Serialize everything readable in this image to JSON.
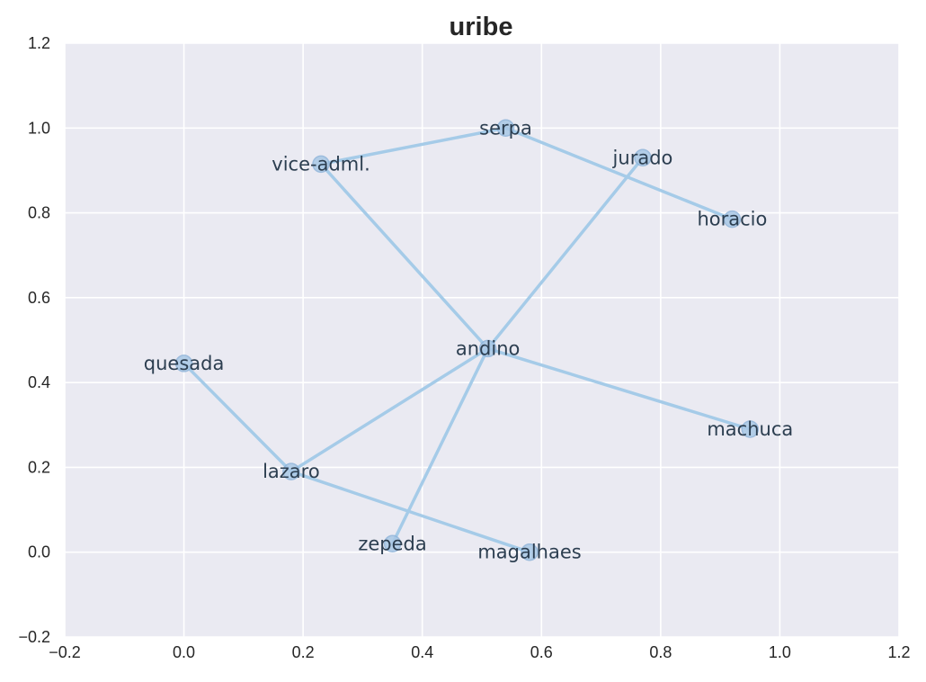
{
  "chart_data": {
    "type": "scatter",
    "subtype": "network-graph",
    "title": "uribe",
    "xlabel": "",
    "ylabel": "",
    "xlim": [
      -0.2,
      1.2
    ],
    "ylim": [
      -0.2,
      1.2
    ],
    "x_ticks": [
      "−0.2",
      "0.0",
      "0.2",
      "0.4",
      "0.6",
      "0.8",
      "1.0",
      "1.2"
    ],
    "y_ticks": [
      "−0.2",
      "0.0",
      "0.2",
      "0.4",
      "0.6",
      "0.8",
      "1.0",
      "1.2"
    ],
    "grid": true,
    "colors": {
      "background": "#eaeaf2",
      "edge": "#a5cbe8",
      "node": "#a9c8e6",
      "label": "#2c3e50"
    },
    "nodes": [
      {
        "name": "serpa",
        "x": 0.54,
        "y": 1.0
      },
      {
        "name": "vice-adml.",
        "x": 0.23,
        "y": 0.915
      },
      {
        "name": "jurado",
        "x": 0.77,
        "y": 0.93
      },
      {
        "name": "horacio",
        "x": 0.92,
        "y": 0.785
      },
      {
        "name": "andino",
        "x": 0.51,
        "y": 0.48
      },
      {
        "name": "quesada",
        "x": 0.0,
        "y": 0.445
      },
      {
        "name": "machuca",
        "x": 0.95,
        "y": 0.29
      },
      {
        "name": "lazaro",
        "x": 0.18,
        "y": 0.19
      },
      {
        "name": "zepeda",
        "x": 0.35,
        "y": 0.02
      },
      {
        "name": "magalhaes",
        "x": 0.58,
        "y": 0.0
      }
    ],
    "edges": [
      [
        "vice-adml.",
        "serpa"
      ],
      [
        "serpa",
        "horacio"
      ],
      [
        "vice-adml.",
        "andino"
      ],
      [
        "jurado",
        "andino"
      ],
      [
        "andino",
        "machuca"
      ],
      [
        "andino",
        "lazaro"
      ],
      [
        "andino",
        "zepeda"
      ],
      [
        "quesada",
        "lazaro"
      ],
      [
        "lazaro",
        "magalhaes"
      ]
    ]
  }
}
